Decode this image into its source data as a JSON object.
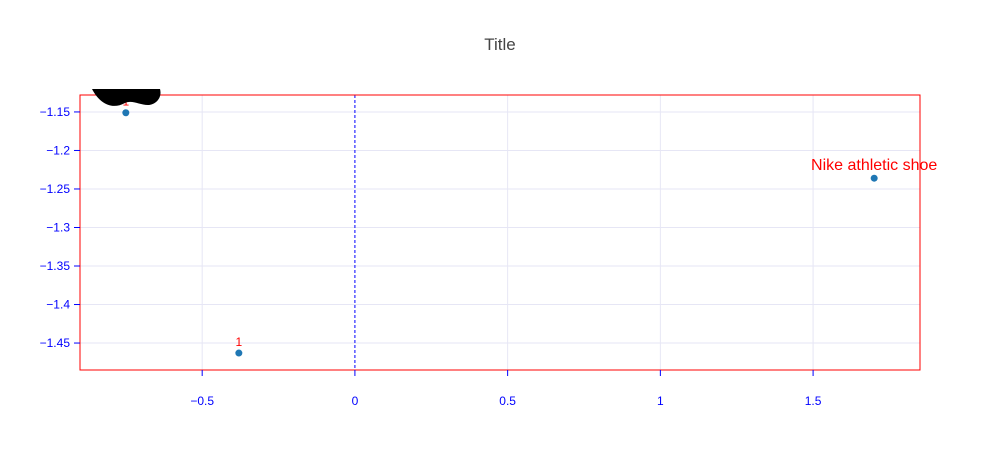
{
  "chart_data": {
    "type": "scatter",
    "title": "Title",
    "xlabel": "",
    "ylabel": "",
    "xlim": [
      -0.9,
      1.85
    ],
    "ylim": [
      -1.485,
      -1.128
    ],
    "x_ticks": [
      -0.5,
      0,
      0.5,
      1,
      1.5
    ],
    "x_tick_labels": [
      "−0.5",
      "0",
      "0.5",
      "1",
      "1.5"
    ],
    "y_ticks": [
      -1.15,
      -1.2,
      -1.25,
      -1.3,
      -1.35,
      -1.4,
      -1.45
    ],
    "y_tick_labels": [
      "−1.15",
      "−1.2",
      "−1.25",
      "−1.3",
      "−1.35",
      "−1.4",
      "−1.45"
    ],
    "grid": true,
    "points": [
      {
        "x": -0.75,
        "y": -1.151,
        "label": "1"
      },
      {
        "x": -0.38,
        "y": -1.463,
        "label": "1"
      },
      {
        "x": 1.7,
        "y": -1.236,
        "label": "Nike athletic shoe"
      }
    ],
    "vline": {
      "x": 0,
      "style": "dashed"
    },
    "colors": {
      "marker": "#1f77b4",
      "frame": "#ff0000",
      "axis_text": "#0000ff",
      "grid": "#e6e6f5",
      "label": "#ff0000",
      "vline": "#0000ff"
    },
    "image": "shoe-image"
  }
}
